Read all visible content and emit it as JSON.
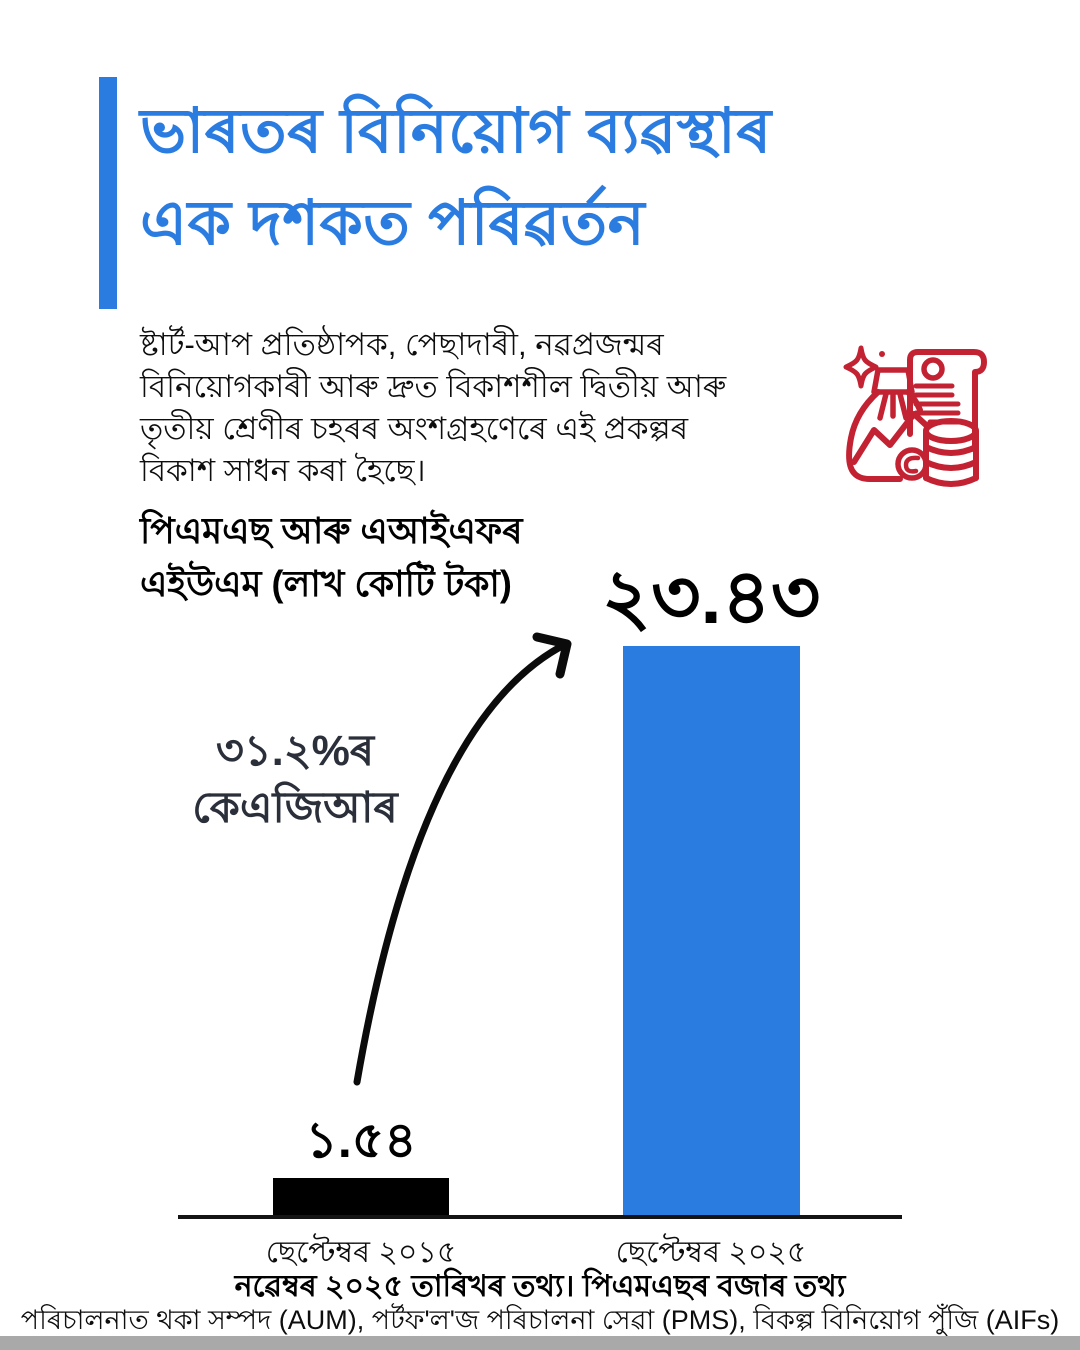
{
  "page": {
    "background": "#ffffff",
    "accent_blue": "#2b7ce0",
    "icon_red": "#c32233",
    "text_black": "#0d0d0d",
    "annotation_color": "#2a2f3a",
    "bottom_strip_gray": "#a9a9a9"
  },
  "header": {
    "title_line1": "ভাৰতৰ বিনিয়োগ ব্যৱস্থাৰ",
    "title_line2": "এক দশকত পৰিৱৰ্তন"
  },
  "intro": {
    "lines": [
      "ষ্টাৰ্ট-আপ প্ৰতিষ্ঠাপক, পেছাদাৰী, নৱপ্ৰজন্মৰ",
      "বিনিয়োগকাৰী আৰু দ্ৰুত বিকাশশীল দ্বিতীয় আৰু",
      "তৃতীয় শ্ৰেণীৰ চহৰৰ অংশগ্ৰহণেৰে এই প্ৰকল্পৰ",
      "বিকাশ সাধন কৰা হৈছে।"
    ]
  },
  "subtitle": {
    "line1": "পিএমএছ আৰু এআইএফৰ",
    "line2": "এইউএম (লাখ কোটি টকা)"
  },
  "icon": {
    "name": "investment-money-bag-scroll-coins-icon",
    "color": "#c32233"
  },
  "chart_data": {
    "type": "bar",
    "title": "পিএমএছ আৰু এআইএফৰ এইউএম (লাখ কোটি টকা)",
    "categories": [
      "ছেপ্টেম্বৰ ২০১৫",
      "ছেপ্টেম্বৰ ২০২৫"
    ],
    "values": [
      1.54,
      23.43
    ],
    "value_labels": [
      "১.৫৪",
      "২৩.৪৩"
    ],
    "bar_colors": [
      "#000000",
      "#2b7ce0"
    ],
    "annotation": "৩১.২%ৰ কেএজিআৰ",
    "annotation_lines": [
      "৩১.২%ৰ",
      "কেএজিআৰ"
    ],
    "ylim": [
      0,
      24.5
    ],
    "grid": false,
    "legend": false
  },
  "footer": {
    "source_line": "নৱেম্বৰ ২০২৫ তাৰিখৰ তথ্য। পিএমএছৰ বজাৰ তথ্য",
    "definitions_line": "পৰিচালনাত থকা সম্পদ (AUM), পৰ্টফ'ল'জ পৰিচালনা সেৱা (PMS), বিকল্প বিনিয়োগ পুঁজি (AIFs)"
  }
}
